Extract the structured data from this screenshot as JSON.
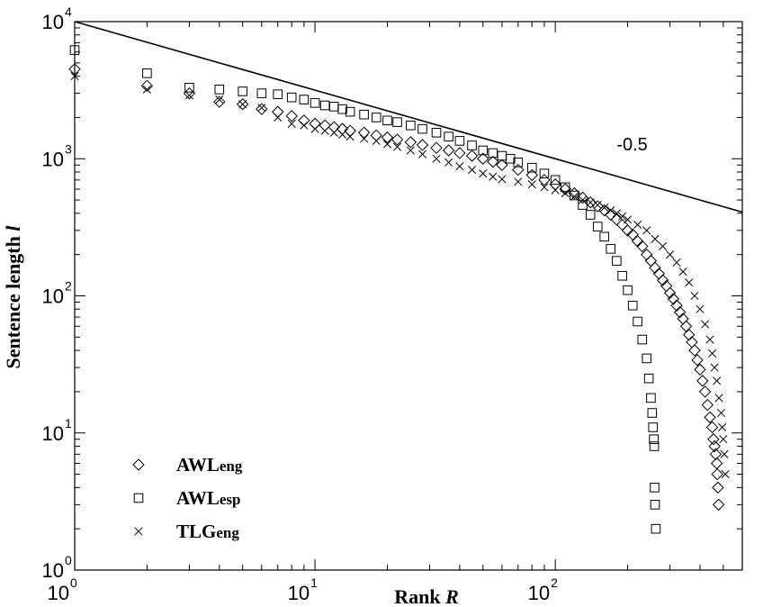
{
  "chart_data": {
    "type": "scatter",
    "xscale": "log",
    "yscale": "log",
    "xlabel": "Rank",
    "xlabel_var": "R",
    "ylabel": "Sentence length",
    "ylabel_var": "l",
    "xlim": [
      1,
      600
    ],
    "ylim": [
      1,
      10000
    ],
    "x_ticks": [
      {
        "base": "10",
        "exp": "0",
        "value": 1
      },
      {
        "base": "10",
        "exp": "1",
        "value": 10
      },
      {
        "base": "10",
        "exp": "2",
        "value": 100
      }
    ],
    "y_ticks": [
      {
        "base": "10",
        "exp": "0",
        "value": 1
      },
      {
        "base": "10",
        "exp": "1",
        "value": 10
      },
      {
        "base": "10",
        "exp": "2",
        "value": 100
      },
      {
        "base": "10",
        "exp": "3",
        "value": 1000
      },
      {
        "base": "10",
        "exp": "4",
        "value": 10000
      }
    ],
    "reference_line": {
      "label": "-0.5",
      "slope": -0.5,
      "intercept_at_x1": 10000,
      "label_x": 180,
      "label_y": 1150
    },
    "legend": {
      "position": "bottom-left",
      "entries": [
        {
          "main": "AWL",
          "sub": "eng",
          "marker": "diamond"
        },
        {
          "main": "AWL",
          "sub": "esp",
          "marker": "square"
        },
        {
          "main": "TLG",
          "sub": "eng",
          "marker": "cross"
        }
      ]
    },
    "series": [
      {
        "name": "AWLeng",
        "marker": "diamond",
        "points": [
          [
            1,
            4500
          ],
          [
            2,
            3400
          ],
          [
            3,
            3000
          ],
          [
            4,
            2600
          ],
          [
            5,
            2500
          ],
          [
            6,
            2300
          ],
          [
            7,
            2200
          ],
          [
            8,
            2050
          ],
          [
            9,
            1900
          ],
          [
            10,
            1800
          ],
          [
            11,
            1750
          ],
          [
            12,
            1700
          ],
          [
            13,
            1650
          ],
          [
            14,
            1600
          ],
          [
            16,
            1550
          ],
          [
            18,
            1480
          ],
          [
            20,
            1430
          ],
          [
            22,
            1380
          ],
          [
            25,
            1320
          ],
          [
            28,
            1260
          ],
          [
            32,
            1200
          ],
          [
            36,
            1150
          ],
          [
            40,
            1100
          ],
          [
            45,
            1050
          ],
          [
            50,
            1000
          ],
          [
            55,
            950
          ],
          [
            60,
            900
          ],
          [
            70,
            830
          ],
          [
            80,
            760
          ],
          [
            90,
            700
          ],
          [
            100,
            650
          ],
          [
            110,
            600
          ],
          [
            120,
            560
          ],
          [
            130,
            520
          ],
          [
            140,
            480
          ],
          [
            150,
            450
          ],
          [
            160,
            420
          ],
          [
            170,
            390
          ],
          [
            180,
            360
          ],
          [
            190,
            330
          ],
          [
            200,
            300
          ],
          [
            210,
            280
          ],
          [
            220,
            250
          ],
          [
            230,
            230
          ],
          [
            240,
            200
          ],
          [
            250,
            180
          ],
          [
            260,
            160
          ],
          [
            270,
            145
          ],
          [
            280,
            130
          ],
          [
            290,
            118
          ],
          [
            300,
            105
          ],
          [
            310,
            95
          ],
          [
            320,
            85
          ],
          [
            330,
            76
          ],
          [
            340,
            68
          ],
          [
            350,
            60
          ],
          [
            360,
            52
          ],
          [
            370,
            46
          ],
          [
            380,
            40
          ],
          [
            390,
            34
          ],
          [
            400,
            29
          ],
          [
            410,
            24
          ],
          [
            420,
            20
          ],
          [
            430,
            16
          ],
          [
            440,
            13
          ],
          [
            450,
            11
          ],
          [
            455,
            9
          ],
          [
            460,
            8
          ],
          [
            465,
            7
          ],
          [
            470,
            6
          ],
          [
            472,
            5
          ],
          [
            475,
            4
          ],
          [
            478,
            3
          ]
        ]
      },
      {
        "name": "AWLesp",
        "marker": "square",
        "points": [
          [
            1,
            6200
          ],
          [
            2,
            4200
          ],
          [
            3,
            3300
          ],
          [
            4,
            3200
          ],
          [
            5,
            3100
          ],
          [
            6,
            3000
          ],
          [
            7,
            2950
          ],
          [
            8,
            2800
          ],
          [
            9,
            2700
          ],
          [
            10,
            2550
          ],
          [
            11,
            2450
          ],
          [
            12,
            2400
          ],
          [
            13,
            2300
          ],
          [
            14,
            2200
          ],
          [
            16,
            2100
          ],
          [
            18,
            2000
          ],
          [
            20,
            1900
          ],
          [
            22,
            1850
          ],
          [
            25,
            1750
          ],
          [
            28,
            1650
          ],
          [
            32,
            1550
          ],
          [
            36,
            1450
          ],
          [
            40,
            1350
          ],
          [
            45,
            1250
          ],
          [
            50,
            1150
          ],
          [
            55,
            1100
          ],
          [
            60,
            1050
          ],
          [
            65,
            1000
          ],
          [
            70,
            940
          ],
          [
            80,
            860
          ],
          [
            90,
            780
          ],
          [
            100,
            700
          ],
          [
            110,
            620
          ],
          [
            120,
            540
          ],
          [
            130,
            460
          ],
          [
            140,
            390
          ],
          [
            150,
            320
          ],
          [
            160,
            270
          ],
          [
            170,
            220
          ],
          [
            180,
            180
          ],
          [
            190,
            140
          ],
          [
            200,
            110
          ],
          [
            210,
            85
          ],
          [
            220,
            65
          ],
          [
            230,
            48
          ],
          [
            240,
            35
          ],
          [
            245,
            25
          ],
          [
            250,
            18
          ],
          [
            253,
            14
          ],
          [
            255,
            11
          ],
          [
            257,
            9
          ],
          [
            258,
            8
          ],
          [
            259,
            4
          ],
          [
            260,
            3
          ],
          [
            262,
            2
          ]
        ]
      },
      {
        "name": "TLGeng",
        "marker": "cross",
        "points": [
          [
            1,
            4000
          ],
          [
            2,
            3200
          ],
          [
            3,
            2900
          ],
          [
            4,
            2700
          ],
          [
            5,
            2500
          ],
          [
            6,
            2350
          ],
          [
            7,
            2000
          ],
          [
            8,
            1800
          ],
          [
            9,
            1750
          ],
          [
            10,
            1650
          ],
          [
            11,
            1600
          ],
          [
            12,
            1550
          ],
          [
            13,
            1500
          ],
          [
            14,
            1450
          ],
          [
            16,
            1400
          ],
          [
            18,
            1350
          ],
          [
            20,
            1280
          ],
          [
            22,
            1220
          ],
          [
            25,
            1150
          ],
          [
            28,
            1080
          ],
          [
            32,
            1000
          ],
          [
            36,
            940
          ],
          [
            40,
            880
          ],
          [
            45,
            830
          ],
          [
            50,
            780
          ],
          [
            55,
            740
          ],
          [
            60,
            710
          ],
          [
            70,
            680
          ],
          [
            80,
            650
          ],
          [
            90,
            620
          ],
          [
            100,
            590
          ],
          [
            110,
            560
          ],
          [
            120,
            530
          ],
          [
            130,
            500
          ],
          [
            140,
            480
          ],
          [
            150,
            460
          ],
          [
            160,
            440
          ],
          [
            170,
            420
          ],
          [
            180,
            400
          ],
          [
            190,
            380
          ],
          [
            200,
            360
          ],
          [
            220,
            330
          ],
          [
            240,
            300
          ],
          [
            260,
            260
          ],
          [
            280,
            230
          ],
          [
            300,
            200
          ],
          [
            320,
            175
          ],
          [
            340,
            150
          ],
          [
            360,
            125
          ],
          [
            380,
            100
          ],
          [
            400,
            80
          ],
          [
            420,
            62
          ],
          [
            440,
            48
          ],
          [
            450,
            38
          ],
          [
            460,
            30
          ],
          [
            470,
            24
          ],
          [
            480,
            18
          ],
          [
            490,
            14
          ],
          [
            495,
            11
          ],
          [
            500,
            9
          ],
          [
            505,
            7
          ],
          [
            510,
            5
          ]
        ]
      }
    ]
  }
}
